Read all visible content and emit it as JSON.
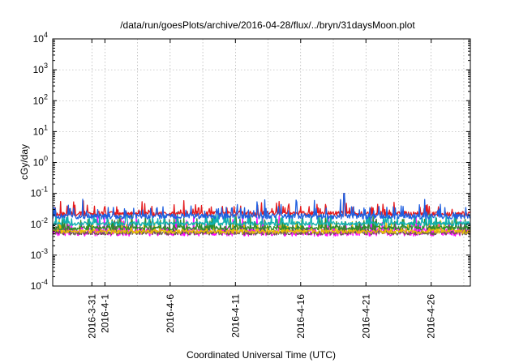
{
  "chart_data": {
    "type": "line",
    "title": "/data/run/goesPlots/archive/2016-04-28/flux/../bryn/31daysMoon.plot",
    "xlabel": "Coordinated Universal Time (UTC)",
    "ylabel": "cGy/day",
    "yscale": "log",
    "ylim": [
      0.0001,
      10000
    ],
    "xlim": [
      "2016-03-28 00:00",
      "2016-04-29 00:00"
    ],
    "grid": true,
    "y_ticks": [
      {
        "base": "10",
        "exp": "-4",
        "value": 0.0001
      },
      {
        "base": "10",
        "exp": "-3",
        "value": 0.001
      },
      {
        "base": "10",
        "exp": "-2",
        "value": 0.01
      },
      {
        "base": "10",
        "exp": "-1",
        "value": 0.1
      },
      {
        "base": "10",
        "exp": "0",
        "value": 1
      },
      {
        "base": "10",
        "exp": "1",
        "value": 10
      },
      {
        "base": "10",
        "exp": "2",
        "value": 100
      },
      {
        "base": "10",
        "exp": "3",
        "value": 1000
      },
      {
        "base": "10",
        "exp": "4",
        "value": 10000
      }
    ],
    "x_ticks": [
      {
        "label": "2016-3-31",
        "date": "2016-03-31 00:00"
      },
      {
        "label": "2016-4-1",
        "date": "2016-04-01 00:00"
      },
      {
        "label": "2016-4-6",
        "date": "2016-04-06 00:00"
      },
      {
        "label": "2016-4-11",
        "date": "2016-04-11 00:00"
      },
      {
        "label": "2016-4-16",
        "date": "2016-04-16 00:00"
      },
      {
        "label": "2016-4-21",
        "date": "2016-04-21 00:00"
      },
      {
        "label": "2016-4-26",
        "date": "2016-04-26 00:00"
      }
    ],
    "x_minor_ticks": [
      "2016-04-03 12:00",
      "2016-04-08 12:00",
      "2016-04-13 12:00",
      "2016-04-18 12:00",
      "2016-04-23 12:00",
      "2016-04-28 12:00"
    ],
    "series": [
      {
        "color": "#e41a1c",
        "base": 0.022,
        "spread": 0.18,
        "spike": 0.045,
        "peak": {
          "date": "2016-04-19 08:00",
          "value": 0.1
        }
      },
      {
        "color": "#1f5fe0",
        "base": 0.018,
        "spread": 0.2,
        "spike": 0.05,
        "peak": {
          "date": "2016-04-19 08:00",
          "value": 0.1
        }
      },
      {
        "color": "#10b0b0",
        "base": 0.0105,
        "spread": 0.15,
        "spike": 0.022
      },
      {
        "color": "#2e8b2e",
        "base": 0.0075,
        "spread": 0.15,
        "spike": 0.016
      },
      {
        "color": "#e8c000",
        "base": 0.0058,
        "spread": 0.15,
        "spike": 0.012
      },
      {
        "color": "#6a5a50",
        "base": 0.0052,
        "spread": 0.15,
        "spike": 0.011
      },
      {
        "color": "#ff00ff",
        "base": 0.0056,
        "spread": 0.3,
        "spike": 0.016
      }
    ]
  }
}
